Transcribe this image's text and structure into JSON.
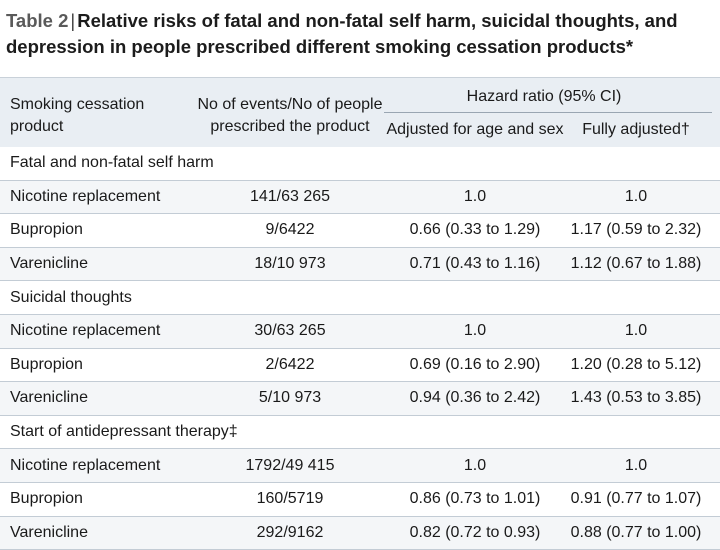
{
  "title": {
    "label": "Table",
    "number": "2",
    "separator": "|",
    "text": "Relative risks of fatal and non-fatal self harm, suicidal thoughts, and depression in people prescribed different smoking cessation products*"
  },
  "header": {
    "col_product": "Smoking cessation product",
    "col_events": "No of events/No of people prescribed the product",
    "group_hazard": "Hazard ratio (95% CI)",
    "col_adjusted_age_sex": "Adjusted for age and sex",
    "col_fully_adjusted": "Fully adjusted†"
  },
  "sections": [
    {
      "name": "Fatal and non-fatal self harm",
      "rows": [
        {
          "product": "Nicotine replacement",
          "events": "141/63 265",
          "adjusted": "1.0",
          "fully": "1.0"
        },
        {
          "product": "Bupropion",
          "events": "9/6422",
          "adjusted": "0.66 (0.33 to 1.29)",
          "fully": "1.17 (0.59 to 2.32)"
        },
        {
          "product": "Varenicline",
          "events": "18/10 973",
          "adjusted": "0.71 (0.43 to 1.16)",
          "fully": "1.12 (0.67 to 1.88)"
        }
      ]
    },
    {
      "name": "Suicidal thoughts",
      "rows": [
        {
          "product": "Nicotine replacement",
          "events": "30/63 265",
          "adjusted": "1.0",
          "fully": "1.0"
        },
        {
          "product": "Bupropion",
          "events": "2/6422",
          "adjusted": "0.69 (0.16 to 2.90)",
          "fully": "1.20 (0.28 to 5.12)"
        },
        {
          "product": "Varenicline",
          "events": "5/10 973",
          "adjusted": "0.94 (0.36 to 2.42)",
          "fully": "1.43 (0.53 to 3.85)"
        }
      ]
    },
    {
      "name": "Start of antidepressant therapy‡",
      "rows": [
        {
          "product": "Nicotine replacement",
          "events": "1792/49 415",
          "adjusted": "1.0",
          "fully": "1.0"
        },
        {
          "product": "Bupropion",
          "events": "160/5719",
          "adjusted": "0.86 (0.73 to 1.01)",
          "fully": "0.91 (0.77 to 1.07)"
        },
        {
          "product": "Varenicline",
          "events": "292/9162",
          "adjusted": "0.82 (0.72 to 0.93)",
          "fully": "0.88 (0.77 to 1.00)"
        }
      ]
    }
  ]
}
